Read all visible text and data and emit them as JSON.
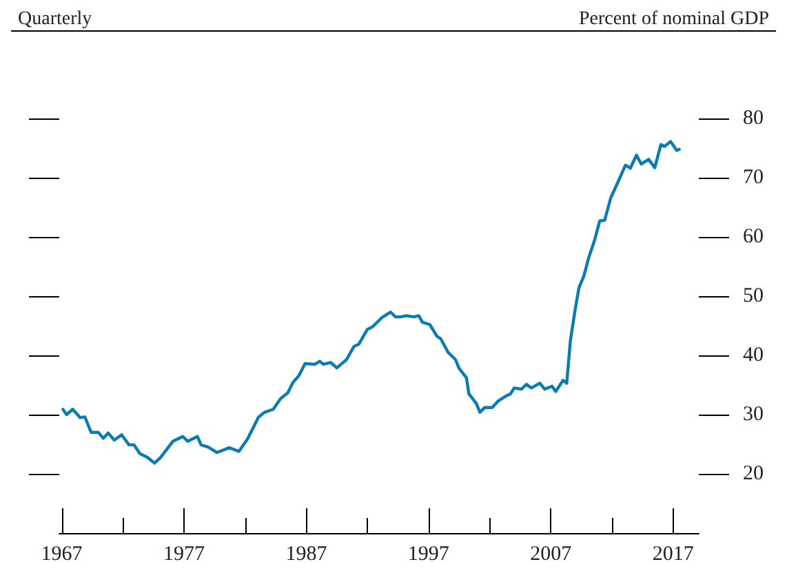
{
  "chart_data": {
    "type": "line",
    "subtitle": "Quarterly",
    "ylabel": "Percent of nominal GDP",
    "xlim": [
      1966.8,
      2019.1
    ],
    "xticks": [
      1967,
      {
        "value": 1972,
        "label": null
      },
      1977,
      {
        "value": 1982,
        "label": null
      },
      1987,
      {
        "value": 1992,
        "label": null
      },
      1997,
      {
        "value": 2002,
        "label": null
      },
      2007,
      {
        "value": 2012,
        "label": null
      },
      2017
    ],
    "ylim": [
      10,
      80
    ],
    "yticks": [
      20,
      30,
      40,
      50,
      60,
      70,
      80
    ],
    "grid": false,
    "marker": "none",
    "line_style": "solid",
    "series": [
      {
        "color": "#0a7bb0",
        "x": [
          1967.1,
          1967.4,
          1967.9,
          1968.5,
          1968.9,
          1969.4,
          1970.0,
          1970.4,
          1970.8,
          1971.3,
          1971.9,
          1972.5,
          1972.9,
          1973.4,
          1974.0,
          1974.6,
          1975.1,
          1976.1,
          1976.9,
          1977.3,
          1978.1,
          1978.4,
          1979.0,
          1979.7,
          1980.7,
          1981.5,
          1982.2,
          1983.1,
          1983.6,
          1984.3,
          1984.9,
          1985.5,
          1985.9,
          1986.4,
          1986.9,
          1987.7,
          1988.1,
          1988.4,
          1989.0,
          1989.5,
          1990.3,
          1990.9,
          1991.3,
          1992.0,
          1992.4,
          1993.2,
          1993.9,
          1994.3,
          1994.7,
          1995.2,
          1995.8,
          1996.2,
          1996.5,
          1997.1,
          1997.7,
          1998.0,
          1998.6,
          1999.2,
          1999.5,
          2000.1,
          2000.3,
          2000.9,
          2001.2,
          2001.6,
          2002.2,
          2002.7,
          2003.3,
          2003.7,
          2004.0,
          2004.6,
          2005.0,
          2005.4,
          2006.1,
          2006.5,
          2007.1,
          2007.4,
          2008.0,
          2008.3,
          2008.6,
          2009.0,
          2009.3,
          2009.7,
          2010.1,
          2010.6,
          2011.0,
          2011.4,
          2011.9,
          2012.5,
          2013.1,
          2013.5,
          2014.0,
          2014.4,
          2015.0,
          2015.5,
          2016.0,
          2016.3,
          2016.8,
          2017.3,
          2017.5
        ],
        "values": [
          30.9,
          30.0,
          30.9,
          29.5,
          29.6,
          27.0,
          27.0,
          26.0,
          26.9,
          25.7,
          26.6,
          24.9,
          24.9,
          23.4,
          22.8,
          21.8,
          22.8,
          25.5,
          26.3,
          25.5,
          26.3,
          24.9,
          24.5,
          23.6,
          24.4,
          23.8,
          25.9,
          29.6,
          30.4,
          30.9,
          32.7,
          33.7,
          35.4,
          36.6,
          38.6,
          38.5,
          39.0,
          38.5,
          38.8,
          37.9,
          39.3,
          41.5,
          41.9,
          44.4,
          44.8,
          46.4,
          47.3,
          46.5,
          46.5,
          46.7,
          46.5,
          46.7,
          45.6,
          45.2,
          43.2,
          42.8,
          40.5,
          39.3,
          37.8,
          36.2,
          33.5,
          31.9,
          30.4,
          31.2,
          31.2,
          32.3,
          33.1,
          33.5,
          34.5,
          34.3,
          35.1,
          34.5,
          35.3,
          34.3,
          34.8,
          33.9,
          35.8,
          35.3,
          42.5,
          47.9,
          51.4,
          53.4,
          56.5,
          59.6,
          62.7,
          62.8,
          66.6,
          69.3,
          72.1,
          71.6,
          73.8,
          72.3,
          73.1,
          71.7,
          75.6,
          75.3,
          76.1,
          74.6,
          74.8
        ]
      }
    ]
  }
}
